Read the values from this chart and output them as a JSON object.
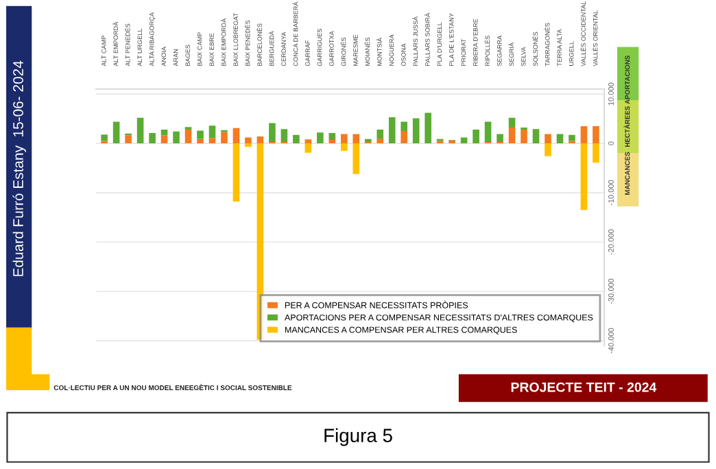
{
  "chart_data": {
    "type": "bar",
    "stacked": true,
    "categories": [
      "ALT CAMP",
      "ALT EMPORDÀ",
      "ALT PENEDÈS",
      "ALT URGELL",
      "ALTA RIBAGORÇA",
      "ANOIA",
      "ARAN",
      "BAGES",
      "BAIX CAMP",
      "BAIX EBRE",
      "BAIX EMPORDÀ",
      "BAIX LLOBREGAT",
      "BAIX PENEDÈS",
      "BARCELONÈS",
      "BERGUEDÀ",
      "CERDANYA",
      "CONCA DE BARBERÀ",
      "GARRAF",
      "GARRIGUES",
      "GARROTXA",
      "GIRONÈS",
      "MARESME",
      "MOIANÈS",
      "MONTSIÀ",
      "NOGUERA",
      "OSONA",
      "PALLARS JUSSÀ",
      "PALLARS SOBIRÀ",
      "PLA D'URGELL",
      "PLA DE L'ESTANY",
      "PRIORAT",
      "RIBERA D'EBRE",
      "RIPOLLÈS",
      "SEGARRA",
      "SEGRIÀ",
      "SELVA",
      "SOLSONÈS",
      "TARRAGONÈS",
      "TERRA ALTA",
      "URGELL",
      "VALLÈS OCCIDENTAL",
      "VALLÈS ORIENTAL"
    ],
    "series": [
      {
        "name": "PER A COMPENSAR NECESSITATS PRÒPIES",
        "color": "#f47a20",
        "values": [
          500,
          0,
          1600,
          0,
          0,
          1600,
          0,
          2800,
          900,
          1100,
          2300,
          3100,
          1200,
          1400,
          300,
          300,
          0,
          800,
          0,
          700,
          1900,
          1900,
          300,
          1000,
          0,
          2500,
          0,
          0,
          500,
          600,
          0,
          0,
          300,
          300,
          3200,
          2800,
          0,
          1900,
          0,
          500,
          3500,
          3500
        ]
      },
      {
        "name": "APORTACIONS PER A COMPENSAR NECESSITATS D'ALTRES COMARQUES",
        "color": "#5aac33",
        "values": [
          1300,
          4400,
          400,
          5200,
          2100,
          1200,
          2400,
          500,
          1700,
          2500,
          400,
          0,
          0,
          0,
          3800,
          2600,
          1700,
          0,
          2200,
          1400,
          0,
          0,
          600,
          1800,
          5300,
          1900,
          5100,
          6200,
          400,
          100,
          1200,
          2800,
          4100,
          1600,
          2000,
          400,
          2900,
          0,
          1900,
          1200,
          0,
          0
        ]
      },
      {
        "name": "MANCANCES A COMPENSAR PER ALTRES COMARQUES",
        "color": "#ffc000",
        "values": [
          0,
          0,
          0,
          0,
          0,
          0,
          0,
          0,
          0,
          0,
          0,
          -11800,
          -700,
          -39800,
          0,
          0,
          0,
          -1900,
          0,
          0,
          -1500,
          -6200,
          0,
          0,
          0,
          0,
          0,
          0,
          0,
          0,
          0,
          0,
          0,
          0,
          0,
          0,
          0,
          -2600,
          0,
          0,
          -13500,
          -3900
        ]
      }
    ],
    "ylim": [
      -41000,
      11000
    ],
    "yticks": [
      {
        "value": 10000,
        "label": "10.000"
      },
      0,
      {
        "value": -10000,
        "label": "-10.000"
      },
      {
        "value": -20000,
        "label": "-20.000"
      },
      {
        "value": -30000,
        "label": "-30.000"
      },
      {
        "value": -40000,
        "label": "-40.000"
      }
    ],
    "grid": "y",
    "legend": "bottom right",
    "annotations": [
      "Eduard Furró Estany  15-06- 2024",
      "COL·LECTIU PER A UN NOU MODEL ENEEGÈTIC I SOCIAL SOSTENIBLE",
      "PROJECTE TEIT - 2024",
      "Figura 5",
      "MANCANCES",
      "HECTÀREES",
      "APORTACIONS"
    ]
  }
}
